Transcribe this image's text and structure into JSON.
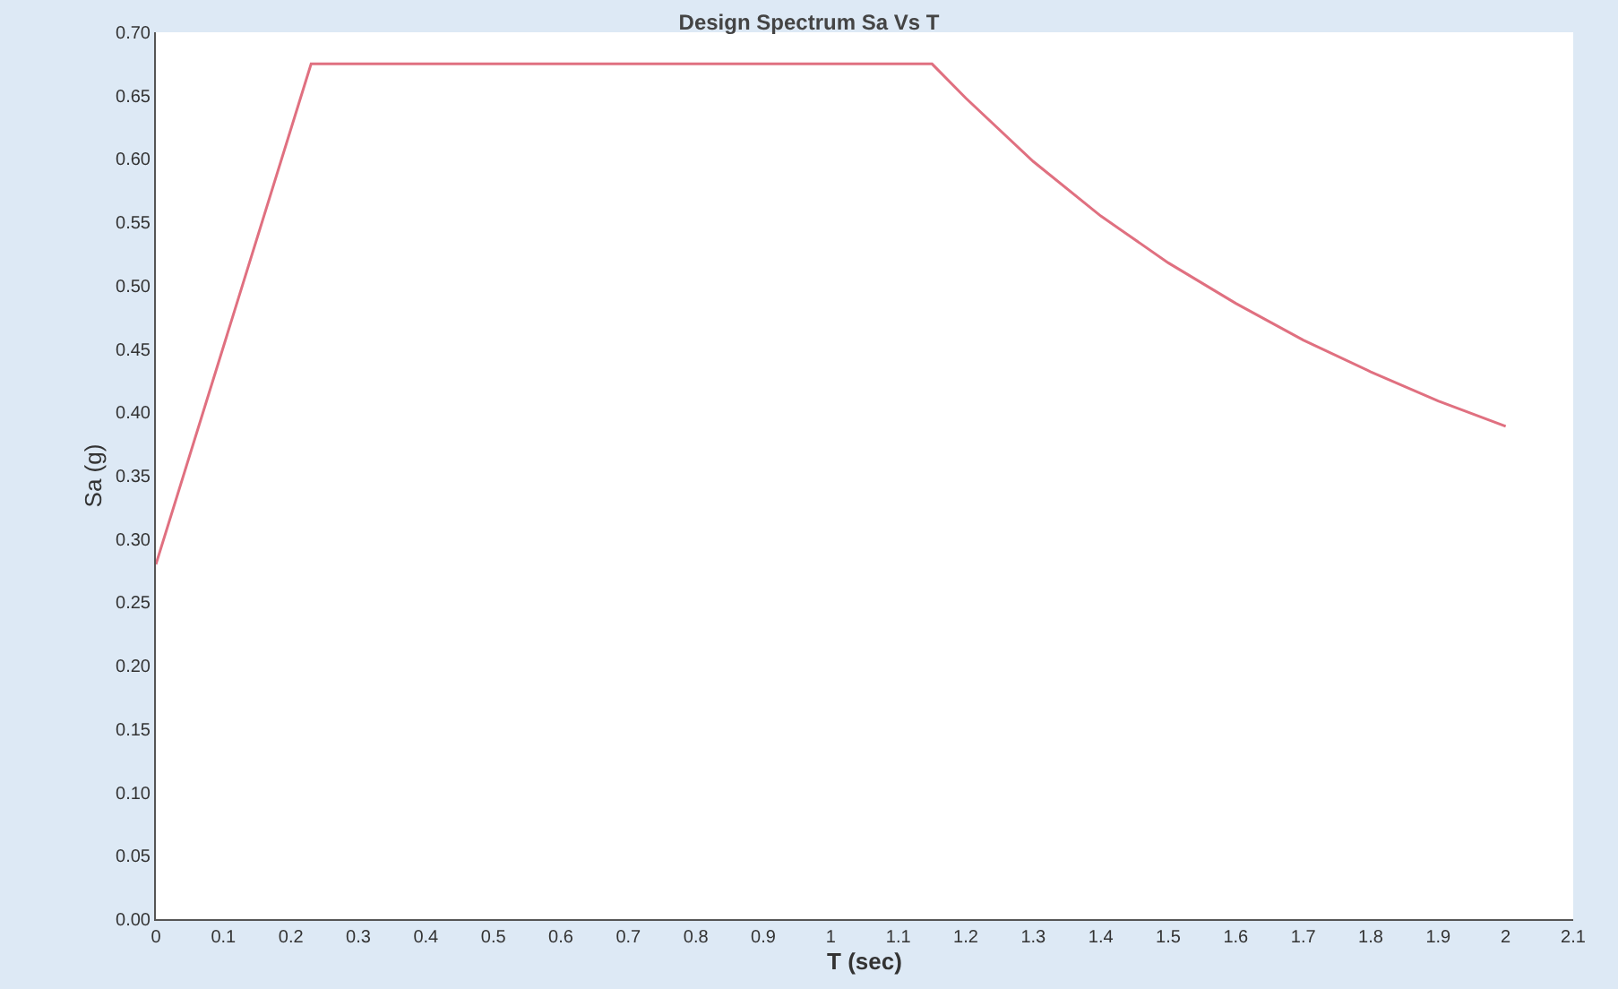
{
  "chart_data": {
    "type": "line",
    "title": "Design Spectrum Sa Vs T",
    "xlabel": "T (sec)",
    "ylabel": "Sa (g)",
    "series": [
      {
        "color": "#e07080",
        "x": [
          0,
          0.23,
          1.15,
          1.2,
          1.3,
          1.4,
          1.5,
          1.6,
          1.7,
          1.8,
          1.9,
          2.0
        ],
        "values": [
          0.28,
          0.675,
          0.675,
          0.648,
          0.598,
          0.555,
          0.518,
          0.486,
          0.457,
          0.432,
          0.409,
          0.389
        ]
      }
    ],
    "xlim": [
      0,
      2.1
    ],
    "xticks": [
      0,
      0.1,
      0.2,
      0.3,
      0.4,
      0.5,
      0.6,
      0.7,
      0.8,
      0.9,
      1,
      1.1,
      1.2,
      1.3,
      1.4,
      1.5,
      1.6,
      1.7,
      1.8,
      1.9,
      2,
      2.1
    ],
    "ylim": [
      0,
      0.7
    ],
    "yticks": [
      {
        "value": 0,
        "label": "0.00"
      },
      {
        "value": 0.05,
        "label": "0.05"
      },
      {
        "value": 0.1,
        "label": "0.10"
      },
      {
        "value": 0.15,
        "label": "0.15"
      },
      {
        "value": 0.2,
        "label": "0.20"
      },
      {
        "value": 0.25,
        "label": "0.25"
      },
      {
        "value": 0.3,
        "label": "0.30"
      },
      {
        "value": 0.35,
        "label": "0.35"
      },
      {
        "value": 0.4,
        "label": "0.40"
      },
      {
        "value": 0.45,
        "label": "0.45"
      },
      {
        "value": 0.5,
        "label": "0.50"
      },
      {
        "value": 0.55,
        "label": "0.55"
      },
      {
        "value": 0.6,
        "label": "0.60"
      },
      {
        "value": 0.65,
        "label": "0.65"
      },
      {
        "value": 0.7,
        "label": "0.70"
      }
    ],
    "marker": "none",
    "line_style": "solid"
  }
}
